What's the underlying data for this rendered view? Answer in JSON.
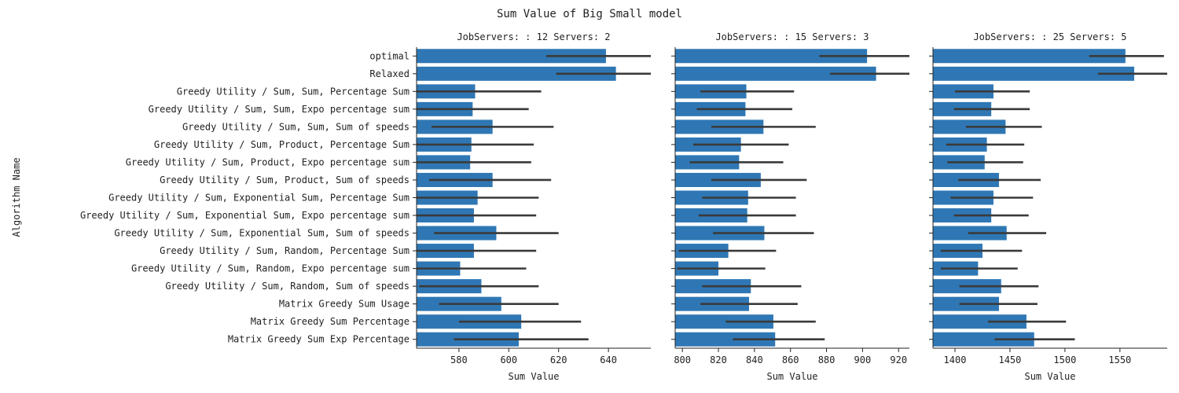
{
  "figure": {
    "title": "Sum Value of Big Small model",
    "ylabel": "Algorithm Name",
    "bar_color": "#2f77b4",
    "errorbar_color": "#3a3a3a"
  },
  "chart_data": [
    {
      "type": "bar",
      "orientation": "horizontal",
      "title": "JobServers: : 12 Servers: 2",
      "xlabel": "Sum Value",
      "ylabel": "Algorithm Name",
      "xlim": [
        563,
        657
      ],
      "xticks": [
        580,
        600,
        620,
        640
      ],
      "categories": [
        "optimal",
        "Relaxed",
        "Greedy Utility / Sum, Sum, Percentage Sum",
        "Greedy Utility / Sum, Sum, Expo percentage sum",
        "Greedy Utility / Sum, Sum, Sum of speeds",
        "Greedy Utility / Sum, Product, Percentage Sum",
        "Greedy Utility / Sum, Product, Expo percentage sum",
        "Greedy Utility / Sum, Product, Sum of speeds",
        "Greedy Utility / Sum, Exponential Sum, Percentage Sum",
        "Greedy Utility / Sum, Exponential Sum, Expo percentage sum",
        "Greedy Utility / Sum, Exponential Sum, Sum of speeds",
        "Greedy Utility / Sum, Random, Percentage Sum",
        "Greedy Utility / Sum, Random, Expo percentage sum",
        "Greedy Utility / Sum, Random, Sum of speeds",
        "Matrix Greedy Sum Usage",
        "Matrix Greedy Sum Percentage",
        "Matrix Greedy Sum Exp Percentage"
      ],
      "values": [
        639,
        643,
        586.5,
        585.5,
        593.5,
        585,
        584.5,
        593.5,
        587.5,
        586,
        595,
        586,
        580.5,
        589,
        597,
        605,
        604
      ],
      "ci_low": [
        615,
        619,
        561,
        561,
        569,
        560,
        560,
        568,
        563,
        561,
        570,
        561,
        556,
        564,
        572,
        580,
        578
      ],
      "ci_high": [
        660,
        660,
        613,
        608,
        618,
        610,
        609,
        617,
        612,
        611,
        620,
        611,
        607,
        612,
        620,
        629,
        632
      ]
    },
    {
      "type": "bar",
      "orientation": "horizontal",
      "title": "JobServers: : 15 Servers: 3",
      "xlabel": "Sum Value",
      "xlim": [
        796,
        926
      ],
      "xticks": [
        800,
        820,
        840,
        860,
        880,
        900,
        920
      ],
      "categories": [
        "optimal",
        "Relaxed",
        "Greedy Utility / Sum, Sum, Percentage Sum",
        "Greedy Utility / Sum, Sum, Expo percentage sum",
        "Greedy Utility / Sum, Sum, Sum of speeds",
        "Greedy Utility / Sum, Product, Percentage Sum",
        "Greedy Utility / Sum, Product, Expo percentage sum",
        "Greedy Utility / Sum, Product, Sum of speeds",
        "Greedy Utility / Sum, Exponential Sum, Percentage Sum",
        "Greedy Utility / Sum, Exponential Sum, Expo percentage sum",
        "Greedy Utility / Sum, Exponential Sum, Sum of speeds",
        "Greedy Utility / Sum, Random, Percentage Sum",
        "Greedy Utility / Sum, Random, Expo percentage sum",
        "Greedy Utility / Sum, Random, Sum of speeds",
        "Matrix Greedy Sum Usage",
        "Matrix Greedy Sum Percentage",
        "Matrix Greedy Sum Exp Percentage"
      ],
      "values": [
        902.5,
        907.5,
        835.5,
        835,
        845,
        832.5,
        831.5,
        843.5,
        836.5,
        836,
        845.5,
        825.5,
        820,
        838,
        837,
        850.5,
        851.5
      ],
      "ci_low": [
        876,
        882,
        810,
        808,
        816,
        806,
        804,
        816,
        811,
        809,
        817,
        798,
        797,
        811,
        810,
        824,
        828
      ],
      "ci_high": [
        930,
        930,
        862,
        861,
        874,
        859,
        856,
        869,
        863,
        863,
        873,
        852,
        846,
        866,
        864,
        874,
        879
      ]
    },
    {
      "type": "bar",
      "orientation": "horizontal",
      "title": "JobServers: : 25 Servers: 5",
      "xlabel": "Sum Value",
      "xlim": [
        1380,
        1593
      ],
      "xticks": [
        1400,
        1450,
        1500,
        1550
      ],
      "categories": [
        "optimal",
        "Relaxed",
        "Greedy Utility / Sum, Sum, Percentage Sum",
        "Greedy Utility / Sum, Sum, Expo percentage sum",
        "Greedy Utility / Sum, Sum, Sum of speeds",
        "Greedy Utility / Sum, Product, Percentage Sum",
        "Greedy Utility / Sum, Product, Expo percentage sum",
        "Greedy Utility / Sum, Product, Sum of speeds",
        "Greedy Utility / Sum, Exponential Sum, Percentage Sum",
        "Greedy Utility / Sum, Exponential Sum, Expo percentage sum",
        "Greedy Utility / Sum, Exponential Sum, Sum of speeds",
        "Greedy Utility / Sum, Random, Percentage Sum",
        "Greedy Utility / Sum, Random, Expo percentage sum",
        "Greedy Utility / Sum, Random, Sum of speeds",
        "Matrix Greedy Sum Usage",
        "Matrix Greedy Sum Percentage",
        "Matrix Greedy Sum Exp Percentage"
      ],
      "values": [
        1555,
        1563,
        1435,
        1433,
        1446,
        1429,
        1427,
        1440,
        1435,
        1433,
        1447,
        1425,
        1421,
        1442,
        1440,
        1465,
        1472
      ],
      "ci_low": [
        1522,
        1530,
        1400,
        1399,
        1410,
        1392,
        1393,
        1403,
        1396,
        1399,
        1412,
        1387,
        1387,
        1404,
        1404,
        1430,
        1436
      ],
      "ci_high": [
        1590,
        1600,
        1468,
        1468,
        1479,
        1463,
        1462,
        1478,
        1471,
        1467,
        1483,
        1461,
        1457,
        1476,
        1475,
        1501,
        1509
      ]
    }
  ]
}
